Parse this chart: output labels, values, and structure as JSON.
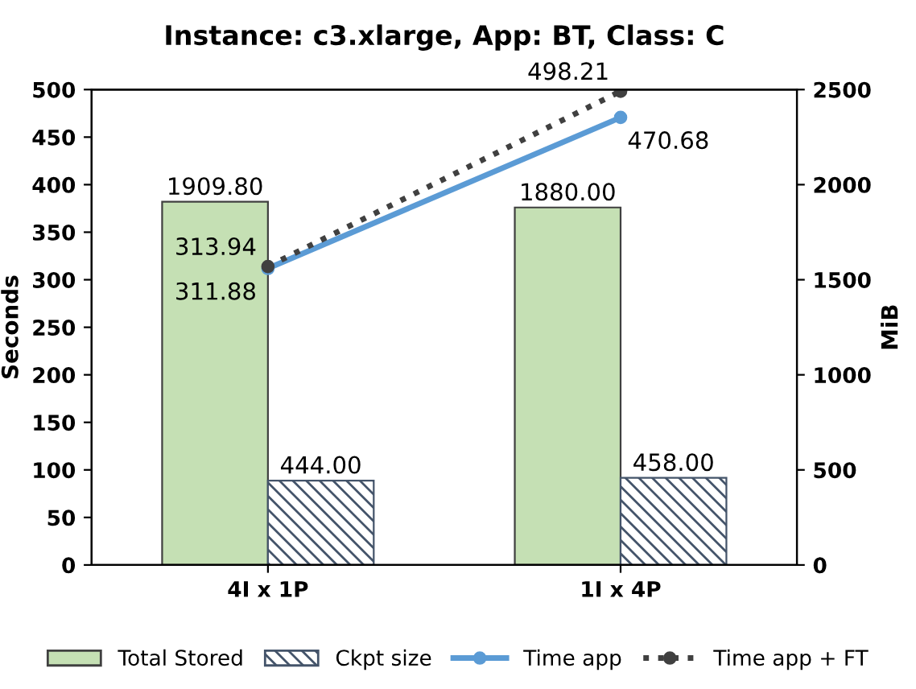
{
  "chart_data": {
    "type": "bar",
    "title": "Instance: c3.xlarge, App: BT, Class: C",
    "ylabel": "Seconds",
    "y2label": "MiB",
    "categories": [
      "4I x 1P",
      "1I x 4P"
    ],
    "series": [
      {
        "name": "Total Stored",
        "color": "#c5e0b4",
        "axis": "y2",
        "values": [
          1909.8,
          1880.0
        ],
        "value_labels": [
          "1909.80",
          "1880.00"
        ]
      },
      {
        "name": "Ckpt size",
        "color": "#44546a",
        "axis": "y2",
        "values": [
          444.0,
          458.0
        ],
        "value_labels": [
          "444.00",
          "458.00"
        ]
      },
      {
        "name": "Time app",
        "type": "line",
        "color": "#5b9bd5",
        "marker": "circle",
        "line_style": "solid",
        "values": [
          311.88,
          470.68
        ],
        "value_labels": [
          "311.88",
          "470.68"
        ]
      },
      {
        "name": "Time app + FT",
        "type": "line",
        "color": "#404040",
        "marker": "circle",
        "line_style": "dotted",
        "values": [
          313.94,
          498.21
        ],
        "value_labels": [
          "313.94",
          "498.21"
        ]
      }
    ],
    "ylim": [
      0,
      500
    ],
    "yticks": [
      0,
      50,
      100,
      150,
      200,
      250,
      300,
      350,
      400,
      450,
      500
    ],
    "y2lim": [
      0,
      2500
    ],
    "y2ticks": [
      0,
      500,
      1000,
      1500,
      2000,
      2500
    ],
    "legend": "bottom",
    "grid": false
  }
}
